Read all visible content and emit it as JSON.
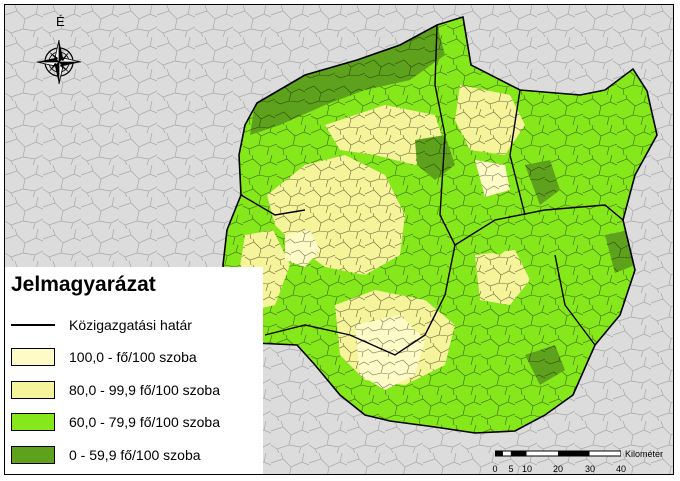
{
  "north_label": "É",
  "legend": {
    "title": "Jelmagyarázat",
    "items": [
      {
        "label": "Közigazgatási határ",
        "type": "line",
        "color": "#000000"
      },
      {
        "label": "100,0 - fő/100 szoba",
        "type": "fill",
        "color": "#fffbc6"
      },
      {
        "label": "80,0 - 99,9 fő/100 szoba",
        "type": "fill",
        "color": "#f6f49a"
      },
      {
        "label": "60,0 - 79,9 fő/100 szoba",
        "type": "fill",
        "color": "#84e81a"
      },
      {
        "label": "0 - 59,9 fő/100 szoba",
        "type": "fill",
        "color": "#5ea11c"
      }
    ]
  },
  "scale": {
    "unit": "Kilométer",
    "ticks": [
      "0",
      "5",
      "10",
      "20",
      "30",
      "40"
    ]
  },
  "colors": {
    "outside_region": "#dcdcdc",
    "outside_lines": "#a8a8a8",
    "border": "#000000"
  },
  "icons": [
    "compass-rose-icon"
  ]
}
